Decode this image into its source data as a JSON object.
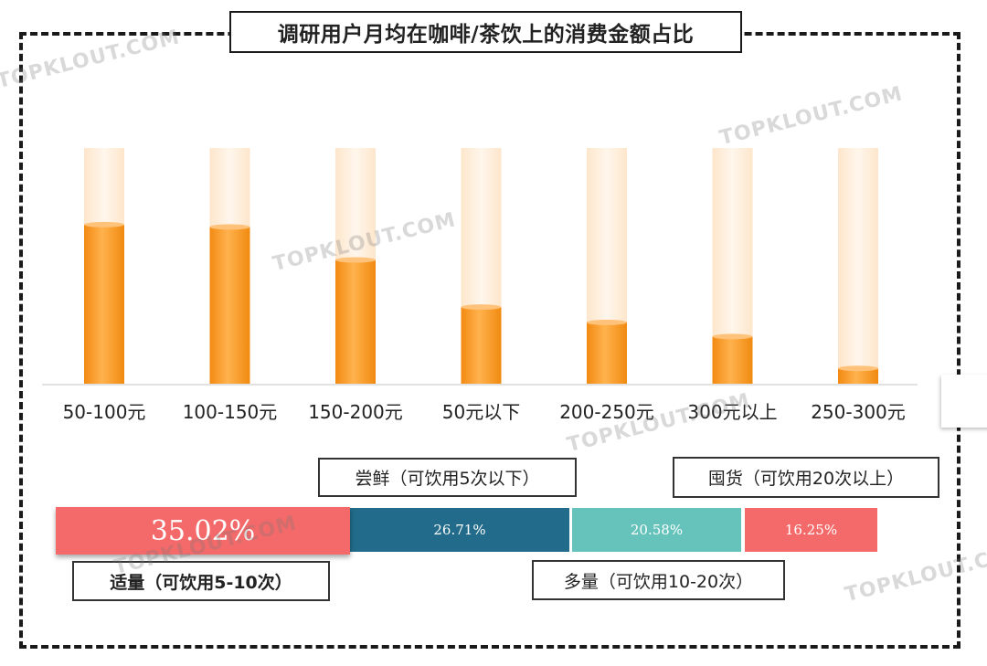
{
  "title": "调研用户月均在咖啡/茶饮上的消费金额占比",
  "watermark": "TOPKLOUT.COM",
  "colors": {
    "bar_fill": "#f7931e",
    "bar_track": "#fdebd5",
    "seg_light_red": "#f46a6a",
    "seg_dark_teal": "#226b8a",
    "seg_aqua": "#66c3bb"
  },
  "chart_data": [
    {
      "type": "bar",
      "categories": [
        "50-100元",
        "100-150元",
        "150-200元",
        "50元以下",
        "200-250元",
        "300元以上",
        "250-300元"
      ],
      "values": [
        67.5,
        66.5,
        52.5,
        32.5,
        26,
        20,
        6.5
      ],
      "ylim": [
        0,
        100
      ],
      "grid": false,
      "legend": "none"
    },
    {
      "type": "bar",
      "orientation": "horizontal-stacked",
      "categories": [
        "适量（可饮用5-10次）",
        "尝鲜（可饮用5次以下）",
        "多量（可饮用10-20次）",
        "囤货（可饮用20次以上）"
      ],
      "values": [
        35.02,
        26.71,
        20.58,
        16.25
      ],
      "value_labels": [
        "35.02%",
        "26.71%",
        "20.58%",
        "16.25%"
      ]
    }
  ]
}
